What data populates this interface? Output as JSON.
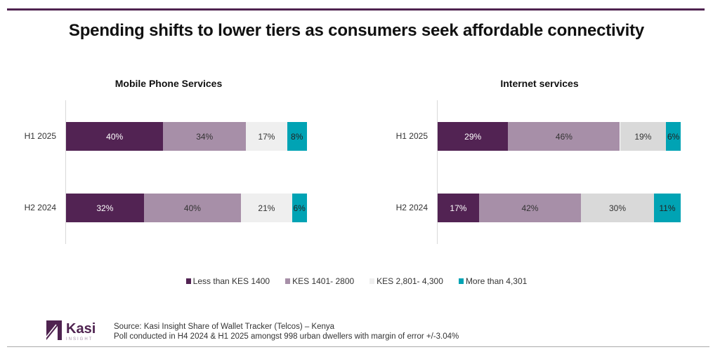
{
  "chart_data": [
    {
      "type": "bar",
      "stacked": true,
      "orientation": "horizontal",
      "title": "Mobile Phone Services",
      "categories": [
        "H1 2025",
        "H2 2024"
      ],
      "series": [
        {
          "name": "Less than KES 1400",
          "values": [
            40,
            32
          ],
          "color": "#522353",
          "text": "#fff"
        },
        {
          "name": "KES 1401- 2800",
          "values": [
            34,
            40
          ],
          "color": "#a78fa8",
          "text": "#333"
        },
        {
          "name": "KES 2,801- 4,300",
          "values": [
            17,
            21
          ],
          "color": "#efefef",
          "text": "#333"
        },
        {
          "name": "More than 4,301",
          "values": [
            8,
            6
          ],
          "color": "#00a3b4",
          "text": "#222"
        }
      ],
      "xlim": [
        0,
        100
      ]
    },
    {
      "type": "bar",
      "stacked": true,
      "orientation": "horizontal",
      "title": "Internet services",
      "categories": [
        "H1 2025",
        "H2 2024"
      ],
      "series": [
        {
          "name": "Less than KES 1400",
          "values": [
            29,
            17
          ],
          "color": "#522353",
          "text": "#fff"
        },
        {
          "name": "KES 1401- 2800",
          "values": [
            46,
            42
          ],
          "color": "#a78fa8",
          "text": "#333"
        },
        {
          "name": "KES 2,801- 4,300",
          "values": [
            19,
            30
          ],
          "color": "#d9d9d9",
          "text": "#333"
        },
        {
          "name": "More than 4,301",
          "values": [
            6,
            11
          ],
          "color": "#00a3b4",
          "text": "#222"
        }
      ],
      "xlim": [
        0,
        100
      ]
    }
  ],
  "title": "Spending shifts to lower tiers as consumers seek affordable connectivity",
  "legend": [
    {
      "label": "Less than KES 1400",
      "color": "#522353"
    },
    {
      "label": "KES 1401- 2800",
      "color": "#a78fa8"
    },
    {
      "label": "KES 2,801- 4,300",
      "color": "#efefef"
    },
    {
      "label": "More than 4,301",
      "color": "#00a3b4"
    }
  ],
  "footer": {
    "source": "Source: Kasi Insight Share of Wallet Tracker (Telcos)  – Kenya",
    "note": "Poll conducted in H4 2024 & H1 2025 amongst  998 urban dwellers with margin of error +/-3.04%",
    "logo_text": "Kasi",
    "logo_sub": "INSIGHT"
  }
}
